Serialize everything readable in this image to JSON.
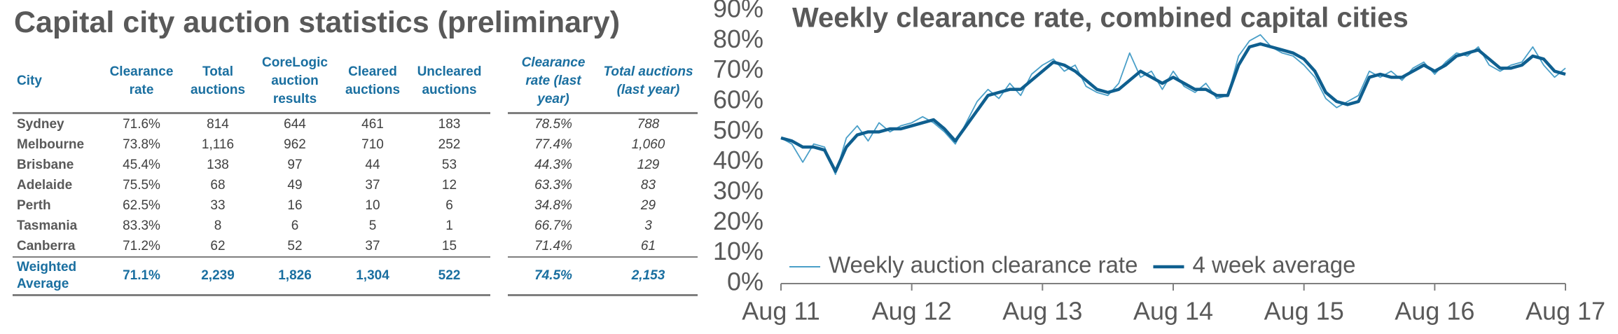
{
  "table": {
    "title": "Capital city auction statistics (preliminary)",
    "header": [
      "City",
      "Clearance rate",
      "Total auctions",
      "CoreLogic auction results",
      "Cleared auctions",
      "Uncleared auctions",
      "Clearance rate (last year)",
      "Total auctions (last year)"
    ],
    "rows": [
      [
        "Sydney",
        "71.6%",
        "814",
        "644",
        "461",
        "183",
        "78.5%",
        "788"
      ],
      [
        "Melbourne",
        "73.8%",
        "1,116",
        "962",
        "710",
        "252",
        "77.4%",
        "1,060"
      ],
      [
        "Brisbane",
        "45.4%",
        "138",
        "97",
        "44",
        "53",
        "44.3%",
        "129"
      ],
      [
        "Adelaide",
        "75.5%",
        "68",
        "49",
        "37",
        "12",
        "63.3%",
        "83"
      ],
      [
        "Perth",
        "62.5%",
        "33",
        "16",
        "10",
        "6",
        "34.8%",
        "29"
      ],
      [
        "Tasmania",
        "83.3%",
        "8",
        "6",
        "5",
        "1",
        "66.7%",
        "3"
      ],
      [
        "Canberra",
        "71.2%",
        "62",
        "52",
        "37",
        "15",
        "71.4%",
        "61"
      ],
      [
        "Weighted Average",
        "71.1%",
        "2,239",
        "1,826",
        "1,304",
        "522",
        "74.5%",
        "2,153"
      ]
    ]
  },
  "chart_data": {
    "type": "line",
    "title": "Weekly clearance rate, combined capital cities",
    "x": [
      0,
      1,
      2,
      3,
      4,
      5,
      6,
      7,
      8,
      9,
      10,
      11,
      12,
      13,
      14,
      15,
      16,
      17,
      18,
      19,
      20,
      21,
      22,
      23,
      24,
      25,
      26,
      27,
      28,
      29,
      30,
      31,
      32,
      33,
      34,
      35,
      36,
      37,
      38,
      39,
      40,
      41,
      42,
      43,
      44,
      45,
      46,
      47,
      48,
      49,
      50,
      51,
      52,
      53,
      54,
      55,
      56,
      57,
      58,
      59,
      60,
      61,
      62,
      63,
      64,
      65,
      66,
      67,
      68,
      69,
      70,
      71,
      72
    ],
    "series": [
      {
        "name": "Weekly auction clearance rate",
        "color": "#4a9fc8",
        "values": [
          48,
          46,
          40,
          46,
          45,
          36,
          48,
          52,
          47,
          53,
          50,
          52,
          53,
          55,
          53,
          50,
          46,
          53,
          60,
          64,
          61,
          66,
          62,
          69,
          72,
          74,
          70,
          72,
          65,
          63,
          62,
          66,
          76,
          68,
          70,
          64,
          70,
          65,
          63,
          66,
          61,
          62,
          75,
          80,
          82,
          78,
          76,
          75,
          72,
          68,
          61,
          58,
          60,
          62,
          70,
          68,
          70,
          67,
          71,
          73,
          69,
          73,
          76,
          75,
          78,
          72,
          70,
          72,
          73,
          78,
          72,
          68,
          71
        ]
      },
      {
        "name": "4 week average",
        "color": "#0f5f8f",
        "values": [
          48,
          47,
          45,
          45,
          44,
          37,
          45,
          49,
          50,
          50,
          51,
          51,
          52,
          53,
          54,
          51,
          47,
          52,
          57,
          62,
          63,
          64,
          64,
          67,
          70,
          73,
          72,
          70,
          67,
          64,
          63,
          64,
          67,
          70,
          68,
          66,
          68,
          66,
          64,
          64,
          62,
          62,
          72,
          78,
          79,
          78,
          77,
          76,
          74,
          70,
          63,
          60,
          59,
          60,
          68,
          69,
          68,
          68,
          70,
          72,
          70,
          72,
          75,
          76,
          77,
          74,
          71,
          71,
          72,
          75,
          74,
          70,
          69
        ]
      }
    ],
    "xlim": [
      0,
      72
    ],
    "xticks": [
      {
        "value": 0,
        "label": "Aug 11"
      },
      {
        "value": 12,
        "label": "Aug 12"
      },
      {
        "value": 24,
        "label": "Aug 13"
      },
      {
        "value": 36,
        "label": "Aug 14"
      },
      {
        "value": 48,
        "label": "Aug 15"
      },
      {
        "value": 60,
        "label": "Aug 16"
      },
      {
        "value": 72,
        "label": "Aug 17"
      }
    ],
    "ylim": [
      0,
      90
    ],
    "yticks": [
      {
        "value": 0,
        "label": "0%"
      },
      {
        "value": 10,
        "label": "10%"
      },
      {
        "value": 20,
        "label": "20%"
      },
      {
        "value": 30,
        "label": "30%"
      },
      {
        "value": 40,
        "label": "40%"
      },
      {
        "value": 50,
        "label": "50%"
      },
      {
        "value": 60,
        "label": "60%"
      },
      {
        "value": 70,
        "label": "70%"
      },
      {
        "value": 80,
        "label": "80%"
      },
      {
        "value": 90,
        "label": "90%"
      }
    ],
    "grid": false,
    "legend": "lower left"
  }
}
